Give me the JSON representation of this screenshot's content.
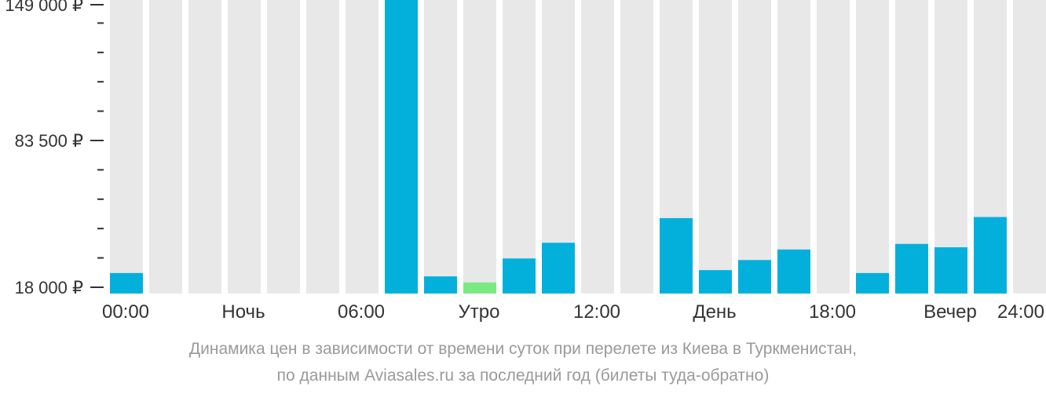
{
  "chart_data": {
    "type": "bar",
    "title": "",
    "xlabel": "",
    "ylabel": "",
    "ylim": [
      18000,
      149000
    ],
    "yticks": [
      {
        "value": 149000,
        "label": "149 000 ₽"
      },
      {
        "value": 83500,
        "label": "83 500 ₽"
      },
      {
        "value": 18000,
        "label": "18 000 ₽"
      }
    ],
    "y_minor_tick_step": 13100,
    "x_ticks": [
      {
        "hour": 0,
        "label": "00:00"
      },
      {
        "hour": 3,
        "label": "Ночь"
      },
      {
        "hour": 6,
        "label": "06:00"
      },
      {
        "hour": 9,
        "label": "Утро"
      },
      {
        "hour": 12,
        "label": "12:00"
      },
      {
        "hour": 15,
        "label": "День"
      },
      {
        "hour": 18,
        "label": "18:00"
      },
      {
        "hour": 21,
        "label": "Вечер"
      },
      {
        "hour": 24,
        "label": "24:00"
      }
    ],
    "categories": [
      "00",
      "01",
      "02",
      "03",
      "04",
      "05",
      "06",
      "07",
      "08",
      "09",
      "10",
      "11",
      "12",
      "13",
      "14",
      "15",
      "16",
      "17",
      "18",
      "19",
      "20",
      "21",
      "22",
      "23"
    ],
    "values": [
      24000,
      null,
      null,
      null,
      null,
      null,
      null,
      149000,
      22500,
      19800,
      30500,
      37500,
      null,
      null,
      48500,
      25300,
      29800,
      34500,
      null,
      24000,
      37000,
      35500,
      49000,
      null
    ],
    "cheapest_index": 9,
    "colors": {
      "bar": "#03b0dc",
      "cheapest": "#7be982",
      "background_bar": "#e8e8e8",
      "axis": "#333333"
    }
  },
  "caption": {
    "line1": "Динамика цен в зависимости от времени суток при перелете из Киева в Туркменистан,",
    "line2": "по данным Aviasales.ru за последний год (билеты туда-обратно)"
  }
}
